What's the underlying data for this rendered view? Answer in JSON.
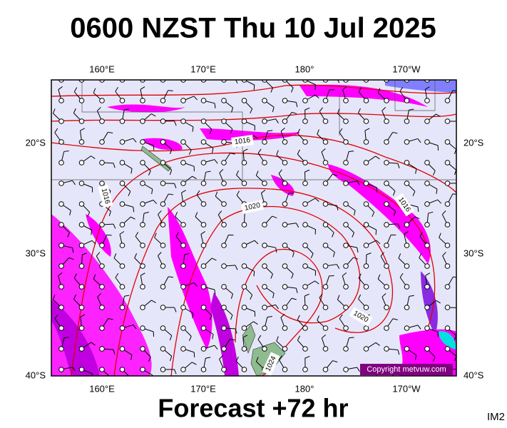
{
  "title": "0600 NZST Thu 10 Jul 2025",
  "map": {
    "lon_labels_top": [
      "160°E",
      "170°E",
      "180°",
      "170°W"
    ],
    "lon_labels_bottom": [
      "160°E",
      "170°E",
      "180°",
      "170°W"
    ],
    "lat_labels_left": [
      "20°S",
      "30°S",
      "40°S"
    ],
    "lat_labels_right": [
      "20°S",
      "30°S",
      "40°S"
    ],
    "isobar_labels": [
      "1016",
      "1016",
      "1020",
      "1016",
      "1020",
      "1024"
    ],
    "copyright": "Copyright metvuw.com"
  },
  "footer": {
    "forecast": "Forecast +72 hr",
    "code": "IM2"
  }
}
